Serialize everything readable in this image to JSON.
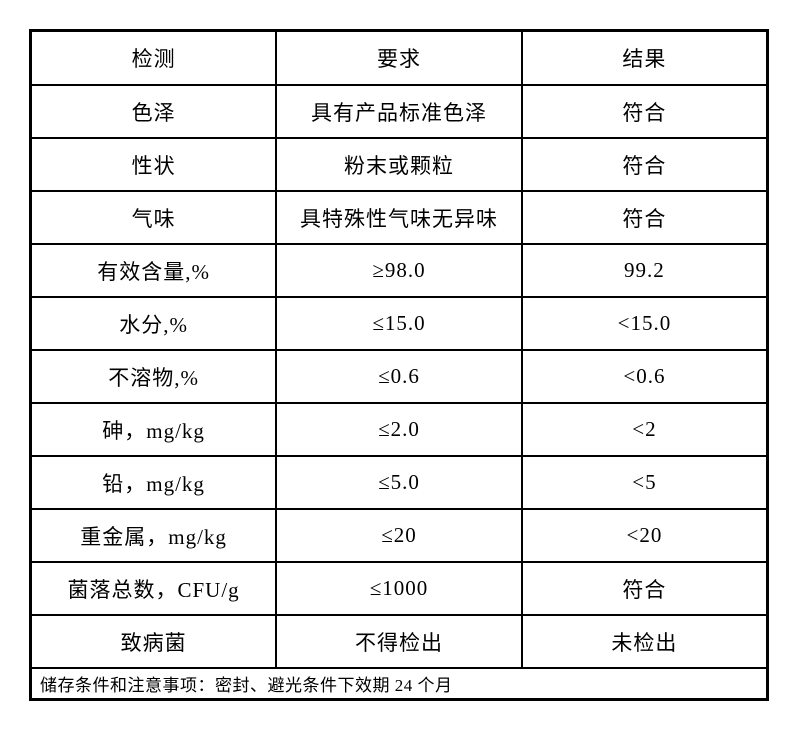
{
  "table": {
    "headers": [
      "检测",
      "要求",
      "结果"
    ],
    "rows": [
      {
        "item": "色泽",
        "requirement": "具有产品标准色泽",
        "result": "符合"
      },
      {
        "item": "性状",
        "requirement": "粉末或颗粒",
        "result": "符合"
      },
      {
        "item": "气味",
        "requirement": "具特殊性气味无异味",
        "result": "符合"
      },
      {
        "item": "有效含量,%",
        "requirement": "≥98.0",
        "result": "99.2"
      },
      {
        "item": "水分,%",
        "requirement": "≤15.0",
        "result": "<15.0"
      },
      {
        "item": "不溶物,%",
        "requirement": "≤0.6",
        "result": "<0.6"
      },
      {
        "item": "砷，mg/kg",
        "requirement": "≤2.0",
        "result": "<2"
      },
      {
        "item": "铅，mg/kg",
        "requirement": "≤5.0",
        "result": "<5"
      },
      {
        "item": "重金属，mg/kg",
        "requirement": "≤20",
        "result": "<20"
      },
      {
        "item": "菌落总数，CFU/g",
        "requirement": "≤1000",
        "result": "符合"
      },
      {
        "item": "致病菌",
        "requirement": "不得检出",
        "result": "未检出"
      }
    ],
    "footer_note": "储存条件和注意事项：密封、避光条件下效期 24 个月"
  },
  "colors": {
    "border": "#000000",
    "text": "#000000",
    "background": "#ffffff"
  }
}
